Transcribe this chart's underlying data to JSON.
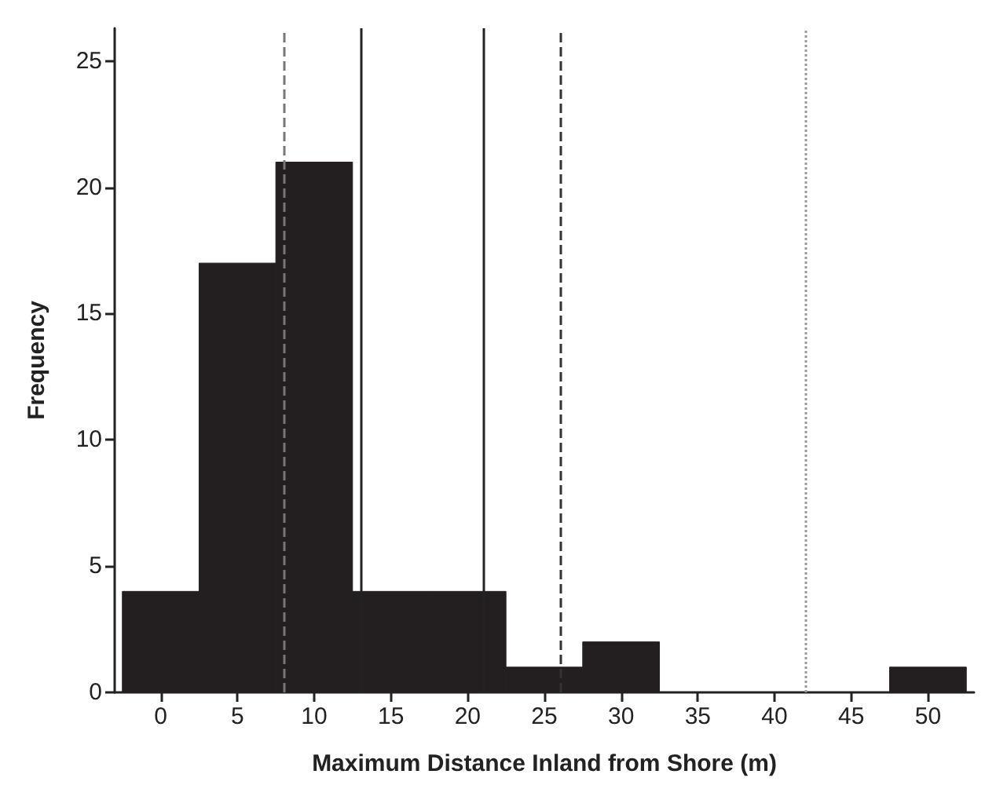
{
  "chart_data": {
    "type": "histogram",
    "xlabel": "Maximum Distance Inland from Shore (m)",
    "ylabel": "Frequency",
    "bins": [
      -2.5,
      2.5,
      7.5,
      12.5,
      17.5,
      22.5,
      27.5,
      32.5,
      37.5,
      42.5,
      47.5,
      52.5
    ],
    "values": [
      4,
      17,
      21,
      4,
      4,
      1,
      2,
      0,
      0,
      0,
      1
    ],
    "color": "#231f20",
    "xlim": [
      -3,
      53
    ],
    "xticks": [
      0,
      5,
      10,
      15,
      20,
      25,
      30,
      35,
      40,
      45,
      50
    ],
    "ylim": [
      0,
      26.3
    ],
    "yticks": [
      0,
      5,
      10,
      15,
      20,
      25
    ],
    "grid": false,
    "ref_lines": [
      {
        "axis": "x",
        "value": 8,
        "color": "#777777",
        "line_style": "dashed"
      },
      {
        "axis": "x",
        "value": 13,
        "color": "#222222",
        "line_style": "solid"
      },
      {
        "axis": "x",
        "value": 21,
        "color": "#222222",
        "line_style": "solid"
      },
      {
        "axis": "x",
        "value": 26,
        "color": "#333333",
        "line_style": "dashed"
      },
      {
        "axis": "x",
        "value": 42,
        "color": "#999999",
        "line_style": "dotted"
      }
    ]
  }
}
